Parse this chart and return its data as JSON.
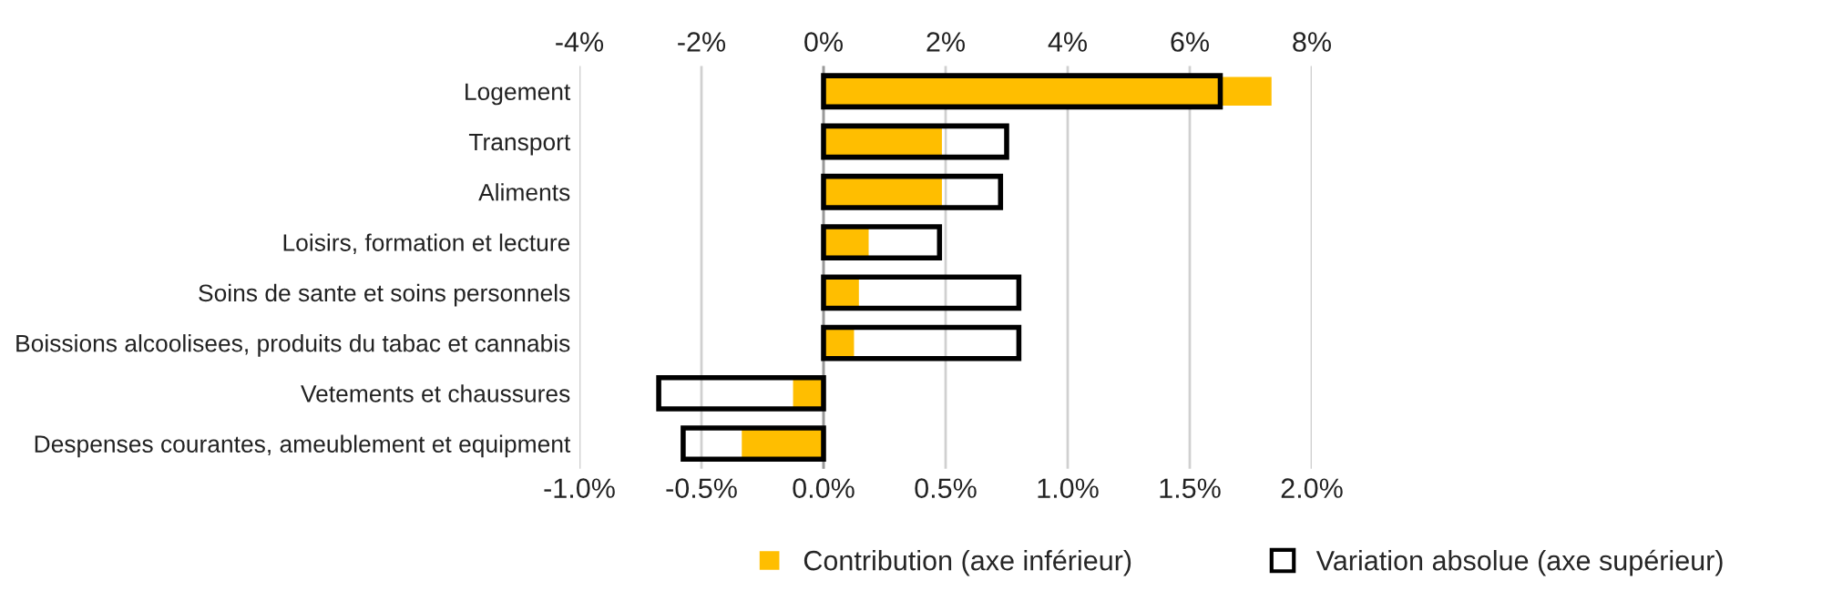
{
  "chart_data": {
    "type": "bar",
    "orientation": "horizontal",
    "categories": [
      "Logement",
      "Transport",
      "Aliments",
      "Loisirs, formation et lecture",
      "Soins de sante et soins personnels",
      "Boissions alcoolisees, produits du tabac et cannabis",
      "Vetements et chaussures",
      "Despenses courantes, ameublement et equipment"
    ],
    "series": [
      {
        "name": "Contribution (axe inférieur)",
        "color": "#ffbe00",
        "values": [
          1.84,
          0.49,
          0.49,
          0.19,
          0.15,
          0.13,
          -0.13,
          -0.34
        ]
      },
      {
        "name": "Variation absolue (axe supérieur)",
        "color": "#000000",
        "axis": "x2",
        "values": [
          6.5,
          3.0,
          2.9,
          1.9,
          3.2,
          3.2,
          -2.7,
          -2.3
        ]
      }
    ],
    "xlim": [
      -1.0,
      2.0
    ],
    "xticks": [
      {
        "value": -1.0,
        "label": "-1.0%"
      },
      {
        "value": -0.5,
        "label": "-0.5%"
      },
      {
        "value": 0.0,
        "label": "0.0%"
      },
      {
        "value": 0.5,
        "label": "0.5%"
      },
      {
        "value": 1.0,
        "label": "1.0%"
      },
      {
        "value": 1.5,
        "label": "1.5%"
      },
      {
        "value": 2.0,
        "label": "2.0%"
      }
    ],
    "x2lim": [
      -4.0,
      8.0
    ],
    "x2ticks": [
      {
        "value": -4,
        "label": "-4%"
      },
      {
        "value": -2,
        "label": "-2%"
      },
      {
        "value": 0,
        "label": "0%"
      },
      {
        "value": 2,
        "label": "2%"
      },
      {
        "value": 4,
        "label": "4%"
      },
      {
        "value": 6,
        "label": "6%"
      },
      {
        "value": 8,
        "label": "8%"
      }
    ],
    "grid": "x",
    "legend": "bottom right"
  }
}
